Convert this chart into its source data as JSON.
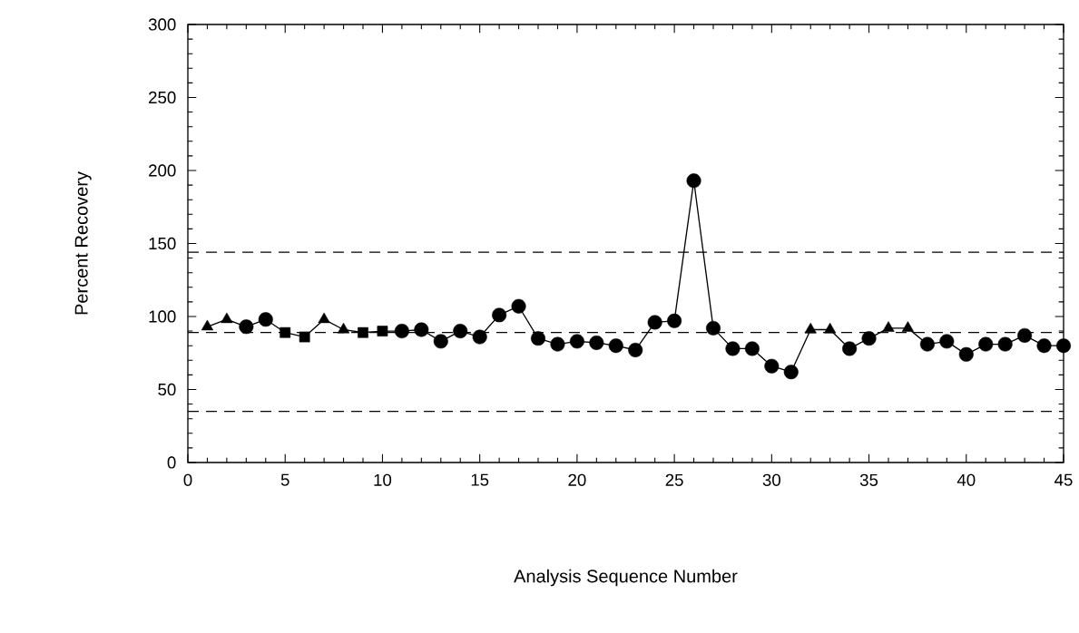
{
  "chart_data": {
    "type": "line",
    "xlabel": "Analysis Sequence Number",
    "ylabel": "Percent Recovery",
    "xlim": [
      0,
      45
    ],
    "xticks": [
      0,
      5,
      10,
      15,
      20,
      25,
      30,
      35,
      40,
      45
    ],
    "ylim": [
      0,
      300
    ],
    "yticks": [
      0,
      50,
      100,
      150,
      200,
      250,
      300
    ],
    "line_style": "solid",
    "series": [
      {
        "marker": "none",
        "color": "#000000",
        "x": [
          1,
          2,
          3,
          4,
          5,
          6,
          7,
          8,
          9,
          10,
          11,
          12,
          13,
          14,
          15,
          16,
          17,
          18,
          19,
          20,
          21,
          22,
          23,
          24,
          25,
          26,
          27,
          28,
          29,
          30,
          31,
          32,
          33,
          34,
          35,
          36,
          37,
          38,
          39,
          40,
          41,
          42,
          43,
          44,
          45
        ],
        "values": [
          93,
          98,
          93,
          98,
          89,
          86,
          98,
          91,
          89,
          90,
          90,
          91,
          83,
          90,
          86,
          101,
          107,
          85,
          81,
          83,
          82,
          80,
          77,
          96,
          97,
          193,
          92,
          78,
          78,
          66,
          62,
          91,
          91,
          78,
          85,
          92,
          92,
          81,
          83,
          74,
          81,
          81,
          87,
          80,
          80
        ]
      },
      {
        "type": "scatter",
        "marker": "triangle",
        "color": "#000000",
        "x": [
          1,
          2,
          7,
          8,
          32,
          33,
          36,
          37
        ],
        "values": [
          93,
          98,
          98,
          91,
          91,
          91,
          92,
          92
        ]
      },
      {
        "type": "scatter",
        "marker": "square",
        "color": "#000000",
        "x": [
          5,
          6,
          9,
          10
        ],
        "values": [
          89,
          86,
          89,
          90
        ]
      },
      {
        "type": "scatter",
        "marker": "circle",
        "color": "#000000",
        "x": [
          3,
          4,
          11,
          12,
          13,
          14,
          15,
          16,
          17,
          18,
          19,
          20,
          21,
          22,
          23,
          24,
          25,
          26,
          27,
          28,
          29,
          30,
          31,
          34,
          35,
          38,
          39,
          40,
          41,
          42,
          43,
          44,
          45
        ],
        "values": [
          93,
          98,
          90,
          91,
          83,
          90,
          86,
          101,
          107,
          85,
          81,
          83,
          82,
          80,
          77,
          96,
          97,
          193,
          92,
          78,
          78,
          66,
          62,
          78,
          85,
          81,
          83,
          74,
          81,
          81,
          87,
          80,
          80
        ]
      }
    ],
    "ref_lines": [
      {
        "axis": "y",
        "value": 144,
        "line_style": "dashed",
        "color": "#000000"
      },
      {
        "axis": "y",
        "value": 89,
        "line_style": "dashed",
        "color": "#000000"
      },
      {
        "axis": "y",
        "value": 35,
        "line_style": "dashed",
        "color": "#000000"
      }
    ]
  }
}
